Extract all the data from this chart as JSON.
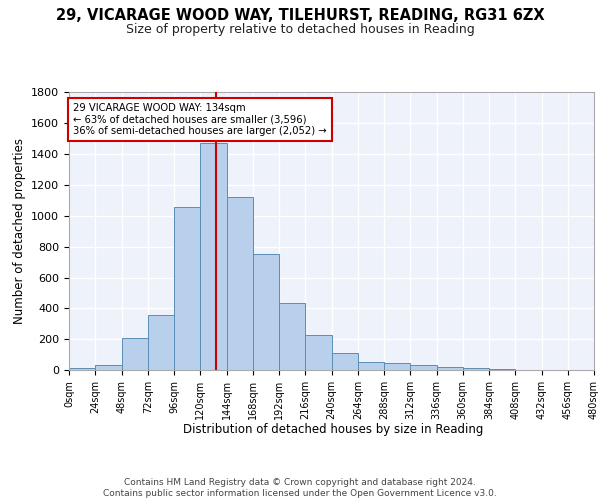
{
  "title1": "29, VICARAGE WOOD WAY, TILEHURST, READING, RG31 6ZX",
  "title2": "Size of property relative to detached houses in Reading",
  "xlabel": "Distribution of detached houses by size in Reading",
  "ylabel": "Number of detached properties",
  "bar_values": [
    10,
    32,
    205,
    355,
    1060,
    1470,
    1120,
    750,
    435,
    225,
    110,
    55,
    45,
    30,
    20,
    10,
    5,
    3,
    2,
    0
  ],
  "bin_edges": [
    0,
    24,
    48,
    72,
    96,
    120,
    144,
    168,
    192,
    216,
    240,
    264,
    288,
    312,
    336,
    360,
    384,
    408,
    432,
    456
  ],
  "xlim": [
    0,
    480
  ],
  "ylim": [
    0,
    1800
  ],
  "bar_color": "#b8d0eb",
  "bar_edge_color": "#5b8db8",
  "vline_x": 134,
  "vline_color": "#cc0000",
  "annotation_text": "29 VICARAGE WOOD WAY: 134sqm\n← 63% of detached houses are smaller (3,596)\n36% of semi-detached houses are larger (2,052) →",
  "annotation_box_color": "#cc0000",
  "background_color": "#eef2fb",
  "grid_color": "#ffffff",
  "footnote": "Contains HM Land Registry data © Crown copyright and database right 2024.\nContains public sector information licensed under the Open Government Licence v3.0.",
  "tick_labels": [
    "0sqm",
    "24sqm",
    "48sqm",
    "72sqm",
    "96sqm",
    "120sqm",
    "144sqm",
    "168sqm",
    "192sqm",
    "216sqm",
    "240sqm",
    "264sqm",
    "288sqm",
    "312sqm",
    "336sqm",
    "360sqm",
    "384sqm",
    "408sqm",
    "432sqm",
    "456sqm",
    "480sqm"
  ]
}
